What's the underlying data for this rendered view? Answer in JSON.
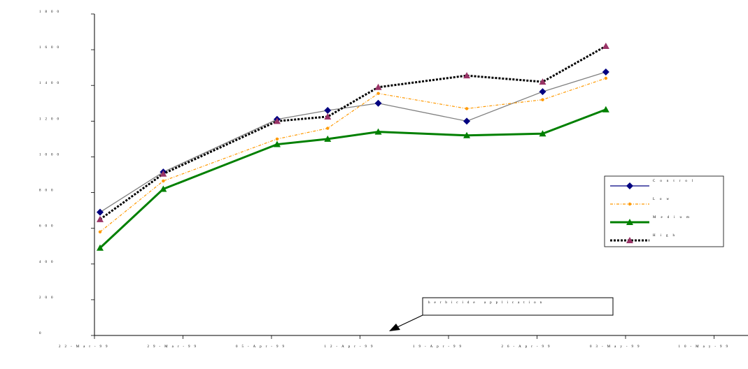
{
  "chart_data": {
    "type": "line",
    "title": "",
    "xlabel": "",
    "ylabel": "",
    "ylim": [
      0,
      1800
    ],
    "yticks": [
      0,
      200,
      400,
      600,
      800,
      1000,
      1200,
      1400,
      1600,
      1800
    ],
    "ytick_labels": [
      "0",
      "200",
      "400",
      "600",
      "800",
      "1000",
      "1200",
      "1400",
      "1600",
      "1800"
    ],
    "categories": [
      "22-Mar-99",
      "29-Mar-99",
      "05-Apr-99",
      "12-Apr-99",
      "19-Apr-99",
      "26-Apr-99",
      "03-May-99",
      "10-May-99"
    ],
    "x": [
      "22-Mar-99",
      "29-Mar-99",
      "05-Apr-99",
      "12-Apr-99",
      "19-Apr-99",
      "26-Apr-99",
      "03-May-99",
      "10-May-99"
    ],
    "x_dates": [
      "1999-03-22",
      "1999-03-29",
      "1999-04-05",
      "1999-04-12",
      "1999-04-19",
      "1999-04-26",
      "1999-05-03",
      "1999-05-10"
    ],
    "point_dates": [
      "1999-03-22",
      "1999-03-27",
      "1999-04-05",
      "1999-04-09",
      "1999-04-13",
      "1999-04-20",
      "1999-04-26",
      "1999-05-01"
    ],
    "grid": false,
    "legend_position": "right",
    "series": [
      {
        "name": "Control",
        "color": "#000080",
        "line_color": "#808080",
        "marker": "diamond",
        "dash": "solid",
        "values": [
          690,
          915,
          1210,
          1260,
          1300,
          1200,
          1365,
          1475
        ]
      },
      {
        "name": "Low",
        "color": "#FF9900",
        "line_color": "#FF9900",
        "marker": "circle",
        "dash": "dashdot",
        "values": [
          580,
          865,
          1100,
          1160,
          1355,
          1270,
          1320,
          1440
        ]
      },
      {
        "name": "Medium",
        "color": "#008000",
        "line_color": "#008000",
        "marker": "triangle",
        "dash": "solid",
        "values": [
          490,
          820,
          1070,
          1100,
          1140,
          1120,
          1130,
          1265
        ]
      },
      {
        "name": "High",
        "color": "#993366",
        "line_color": "#000000",
        "marker": "triangle",
        "dash": "dotted",
        "values": [
          650,
          905,
          1200,
          1225,
          1390,
          1455,
          1420,
          1620
        ]
      }
    ],
    "annotations": [
      {
        "text": "herbicide application",
        "date": "1999-04-09"
      }
    ]
  }
}
